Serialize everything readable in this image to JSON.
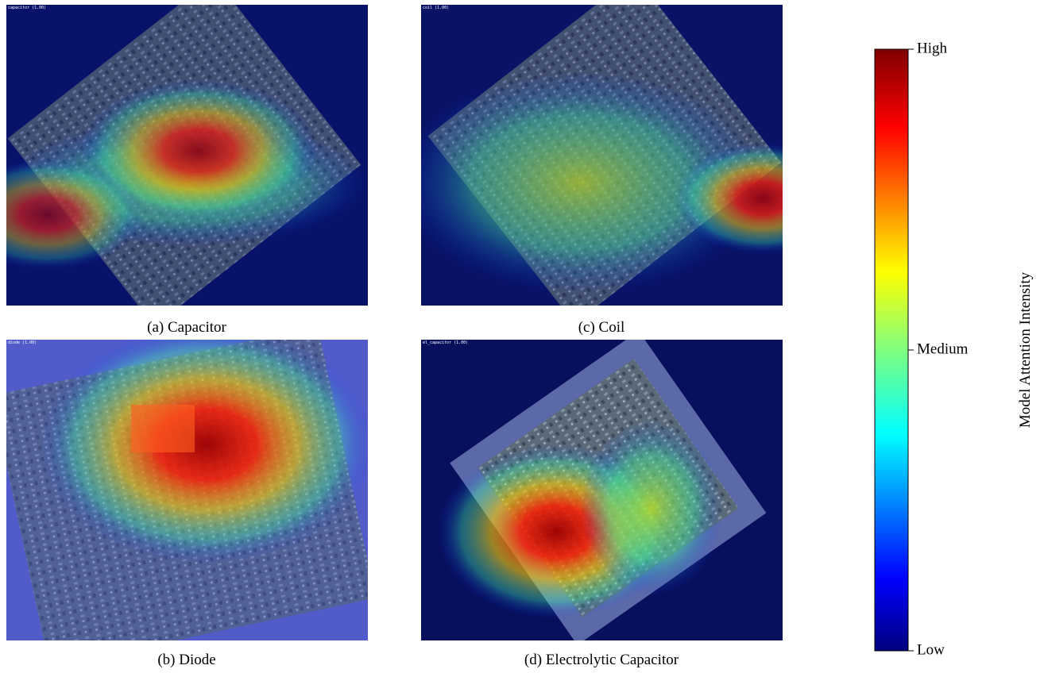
{
  "panels": [
    {
      "caption": "(a) Capacitor",
      "tag": "capacitor (1.00)"
    },
    {
      "caption": "(b) Diode",
      "tag": "diode (1.00)"
    },
    {
      "caption": "(c) Coil",
      "tag": "coil (1.00)"
    },
    {
      "caption": "(d) Electrolytic Capacitor",
      "tag": "el_capacitor (1.00)"
    }
  ],
  "colorbar": {
    "label": "Model Attention Intensity",
    "ticks": [
      "Low",
      "Medium",
      "High"
    ]
  }
}
